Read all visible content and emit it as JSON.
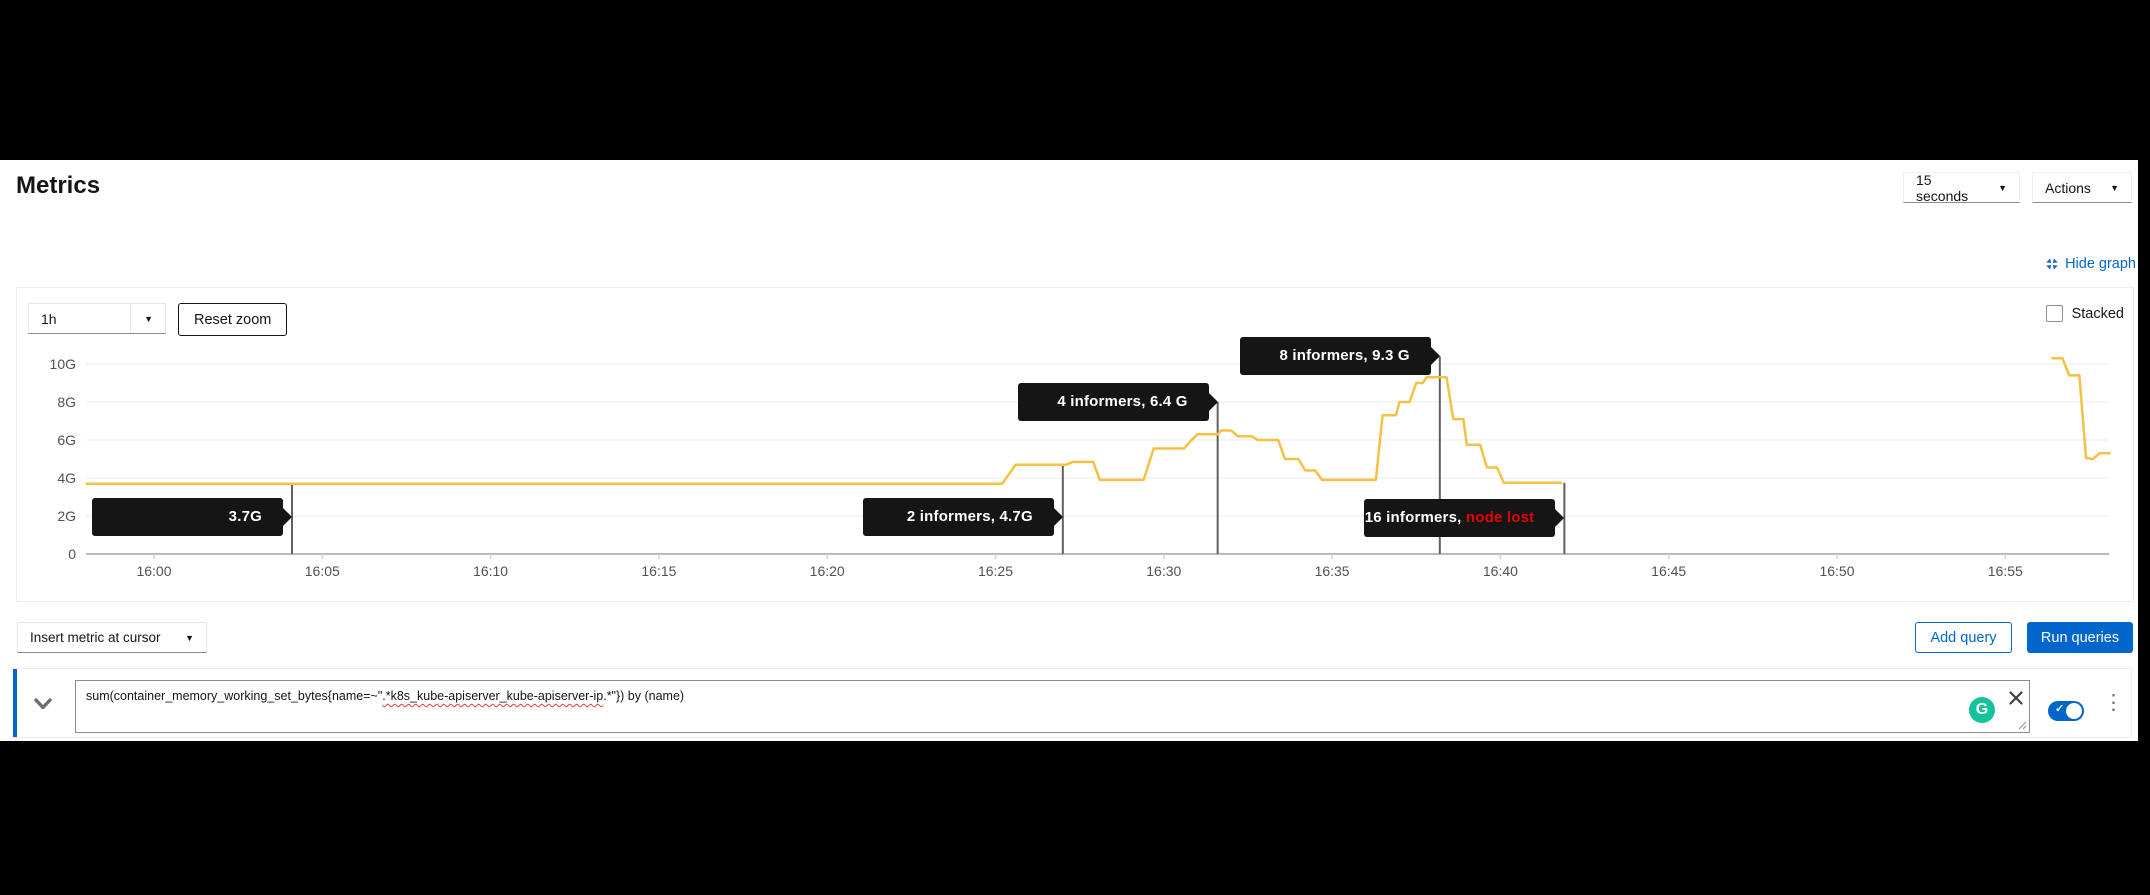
{
  "header": {
    "title": "Metrics",
    "interval_select_value": "15 seconds",
    "actions_label": "Actions"
  },
  "graph_toolbar": {
    "hide_graph_label": "Hide graph",
    "range_select_value": "1h",
    "reset_zoom_label": "Reset zoom",
    "stacked_label": "Stacked"
  },
  "chart_data": {
    "type": "line",
    "title": "",
    "xlabel": "",
    "ylabel": "",
    "grid": true,
    "legend": false,
    "ylim": [
      0,
      10.5
    ],
    "x_range_minutes": [
      -2.0,
      58.1
    ],
    "y_ticks": [
      {
        "label": "10G",
        "value": 10
      },
      {
        "label": "8G",
        "value": 8
      },
      {
        "label": "6G",
        "value": 6
      },
      {
        "label": "4G",
        "value": 4
      },
      {
        "label": "2G",
        "value": 2
      },
      {
        "label": "0",
        "value": 0
      }
    ],
    "x_ticks": [
      {
        "label": "16:00",
        "minute": 0
      },
      {
        "label": "16:05",
        "minute": 5
      },
      {
        "label": "16:10",
        "minute": 10
      },
      {
        "label": "16:15",
        "minute": 15
      },
      {
        "label": "16:20",
        "minute": 20
      },
      {
        "label": "16:25",
        "minute": 25
      },
      {
        "label": "16:30",
        "minute": 30
      },
      {
        "label": "16:35",
        "minute": 35
      },
      {
        "label": "16:40",
        "minute": 40
      },
      {
        "label": "16:45",
        "minute": 45
      },
      {
        "label": "16:50",
        "minute": 50
      },
      {
        "label": "16:55",
        "minute": 55
      }
    ],
    "series": [
      {
        "name": "sum(container_memory_working_set_bytes{name=~\".*k8s_kube-apiserver_kube-apiserver-ip.*\"}) by (name)",
        "color": "#F4C145",
        "unit": "G",
        "segments": [
          [
            [
              -2.0,
              3.7
            ],
            [
              25.2,
              3.7
            ],
            [
              25.6,
              4.7
            ],
            [
              27.1,
              4.7
            ],
            [
              27.3,
              4.85
            ],
            [
              27.9,
              4.85
            ],
            [
              28.1,
              3.9
            ],
            [
              29.4,
              3.9
            ],
            [
              29.7,
              5.55
            ],
            [
              30.6,
              5.55
            ],
            [
              30.8,
              5.95
            ],
            [
              31.0,
              6.3
            ],
            [
              31.6,
              6.3
            ],
            [
              31.7,
              6.5
            ],
            [
              32.0,
              6.5
            ],
            [
              32.2,
              6.2
            ],
            [
              32.6,
              6.2
            ],
            [
              32.8,
              6.0
            ],
            [
              33.4,
              6.0
            ],
            [
              33.6,
              5.0
            ],
            [
              34.0,
              5.0
            ],
            [
              34.2,
              4.4
            ],
            [
              34.5,
              4.4
            ],
            [
              34.7,
              3.9
            ],
            [
              36.3,
              3.9
            ],
            [
              36.5,
              7.3
            ],
            [
              36.9,
              7.3
            ],
            [
              37.0,
              8.0
            ],
            [
              37.3,
              8.0
            ],
            [
              37.5,
              9.0
            ],
            [
              37.7,
              9.0
            ],
            [
              37.8,
              9.3
            ],
            [
              38.4,
              9.3
            ],
            [
              38.6,
              7.1
            ],
            [
              38.9,
              7.1
            ],
            [
              39.0,
              5.75
            ],
            [
              39.4,
              5.75
            ],
            [
              39.6,
              4.55
            ],
            [
              39.9,
              4.55
            ],
            [
              40.1,
              3.75
            ],
            [
              41.8,
              3.75
            ]
          ],
          [
            [
              56.4,
              10.3
            ],
            [
              56.7,
              10.3
            ],
            [
              56.9,
              9.4
            ],
            [
              57.2,
              9.4
            ],
            [
              57.4,
              5.05
            ],
            [
              57.6,
              5.0
            ],
            [
              57.8,
              5.3
            ],
            [
              58.1,
              5.3
            ]
          ]
        ]
      }
    ],
    "annotations": [
      {
        "text": "3.7G",
        "text_red": "",
        "t": 4.1,
        "tip_value_g": 1.95,
        "line_top_g": 3.7
      },
      {
        "text": "2 informers, 4.7G",
        "text_red": "",
        "t": 27.0,
        "tip_value_g": 1.97,
        "line_top_g": 4.7
      },
      {
        "text": "4 informers, 6.4 G",
        "text_red": "",
        "t": 31.6,
        "tip_value_g": 8.0,
        "line_top_g": 8.0
      },
      {
        "text": "8 informers, 9.3 G",
        "text_red": "",
        "t": 38.2,
        "tip_value_g": 10.4,
        "line_top_g": 10.4
      },
      {
        "text": "16 informers, ",
        "text_red": "node lost",
        "t": 41.9,
        "tip_value_g": 1.9,
        "line_top_g": 3.75
      }
    ]
  },
  "query_toolbar": {
    "insert_metric_label": "Insert metric at cursor",
    "add_query_label": "Add query",
    "run_queries_label": "Run queries"
  },
  "query_row": {
    "expression": "sum(container_memory_working_set_bytes{name=~\".*k8s_kube-apiserver_kube-apiserver-ip.*\"}) by (name)",
    "expr_prefix": "sum(container_memory_working_set_bytes{name=~\"",
    "expr_misspelled": ".*k8s_kube-apiserver_kube-apiserver-ip",
    "expr_suffix": ".*\"}) by (name)",
    "grammarly_letter": "G"
  },
  "colors": {
    "accent_blue": "#0066cc",
    "series_gold": "#F4C145",
    "node_lost_red": "#e60000",
    "tooltip_bg": "#151515",
    "grammarly_green": "#15c39a",
    "grid_line": "#ededed",
    "axis_line": "#b8bbbe",
    "cursor_line": "#5f6062"
  }
}
